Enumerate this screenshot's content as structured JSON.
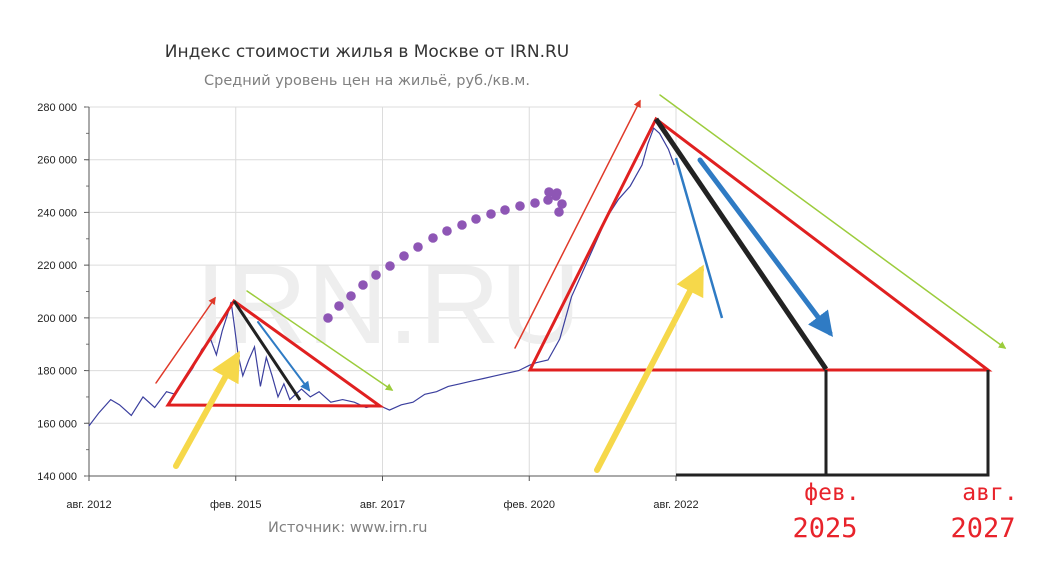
{
  "title": "Индекс стоимости жилья в Москве от IRN.RU",
  "subtitle": "Средний уровень цен на жильё, руб./кв.м.",
  "source": "Источник: www.irn.ru",
  "watermark": "IRN.RU",
  "annotations": {
    "feb_month": "фев.",
    "feb_year": "2025",
    "aug_month": "авг.",
    "aug_year": "2027"
  },
  "colors": {
    "series": "#3b3f9e",
    "triangle": "#e02020",
    "up_arrow": "#e03a2a",
    "green_arrow": "#9ccc3c",
    "blue_arrow": "#2f7bc4",
    "yellow_arrow": "#f6d84a",
    "black_line": "#222222",
    "purple_dots": "#8e56b5",
    "handwriting": "#e8232b"
  },
  "chart_data": {
    "type": "line",
    "title": "Индекс стоимости жилья в Москве от IRN.RU",
    "subtitle": "Средний уровень цен на жильё, руб./кв.м.",
    "ylim": [
      140000,
      280000
    ],
    "y_ticks": [
      "140 000",
      "160 000",
      "180 000",
      "200 000",
      "220 000",
      "240 000",
      "260 000",
      "280 000"
    ],
    "y_tick_values": [
      140000,
      160000,
      180000,
      200000,
      220000,
      240000,
      260000,
      280000
    ],
    "x_ticks": [
      "авг. 2012",
      "фев. 2015",
      "авг. 2017",
      "фев. 2020",
      "авг. 2022"
    ],
    "x_tick_values": [
      2012.58,
      2015.08,
      2017.58,
      2020.08,
      2022.58
    ],
    "grid": true,
    "series": [
      {
        "x": [
          2012.58,
          2012.75,
          2012.95,
          2013.1,
          2013.3,
          2013.5,
          2013.7,
          2013.9,
          2014.05,
          2014.2,
          2014.35,
          2014.5,
          2014.65,
          2014.75,
          2014.85,
          2014.95,
          2015.0,
          2015.05,
          2015.12,
          2015.2,
          2015.3,
          2015.4,
          2015.5,
          2015.6,
          2015.7,
          2015.8,
          2015.9,
          2016.0,
          2016.1,
          2016.2,
          2016.35,
          2016.5,
          2016.7,
          2016.9,
          2017.1,
          2017.3,
          2017.5,
          2017.7,
          2017.9,
          2018.1,
          2018.3,
          2018.5,
          2018.7,
          2018.9,
          2019.1,
          2019.3,
          2019.5,
          2019.7,
          2019.9,
          2020.08,
          2020.2,
          2020.4,
          2020.6,
          2020.8,
          2021.0,
          2021.2,
          2021.4,
          2021.6,
          2021.8,
          2022.0,
          2022.1,
          2022.2,
          2022.3,
          2022.45,
          2022.55
        ],
        "values": [
          159000,
          164000,
          169000,
          167000,
          163000,
          170000,
          166000,
          172000,
          171000,
          176000,
          181000,
          188000,
          192000,
          186000,
          195000,
          202000,
          206000,
          198000,
          186000,
          178000,
          184000,
          189000,
          174000,
          185000,
          178000,
          170000,
          175000,
          169000,
          171000,
          173000,
          170000,
          172000,
          168000,
          169000,
          168000,
          166000,
          167000,
          165000,
          167000,
          168000,
          171000,
          172000,
          174000,
          175000,
          176000,
          177000,
          178000,
          179000,
          180000,
          182000,
          183000,
          184000,
          192000,
          208000,
          218000,
          228000,
          238000,
          245000,
          250000,
          258000,
          266000,
          272000,
          270000,
          264000,
          258000
        ]
      }
    ]
  }
}
